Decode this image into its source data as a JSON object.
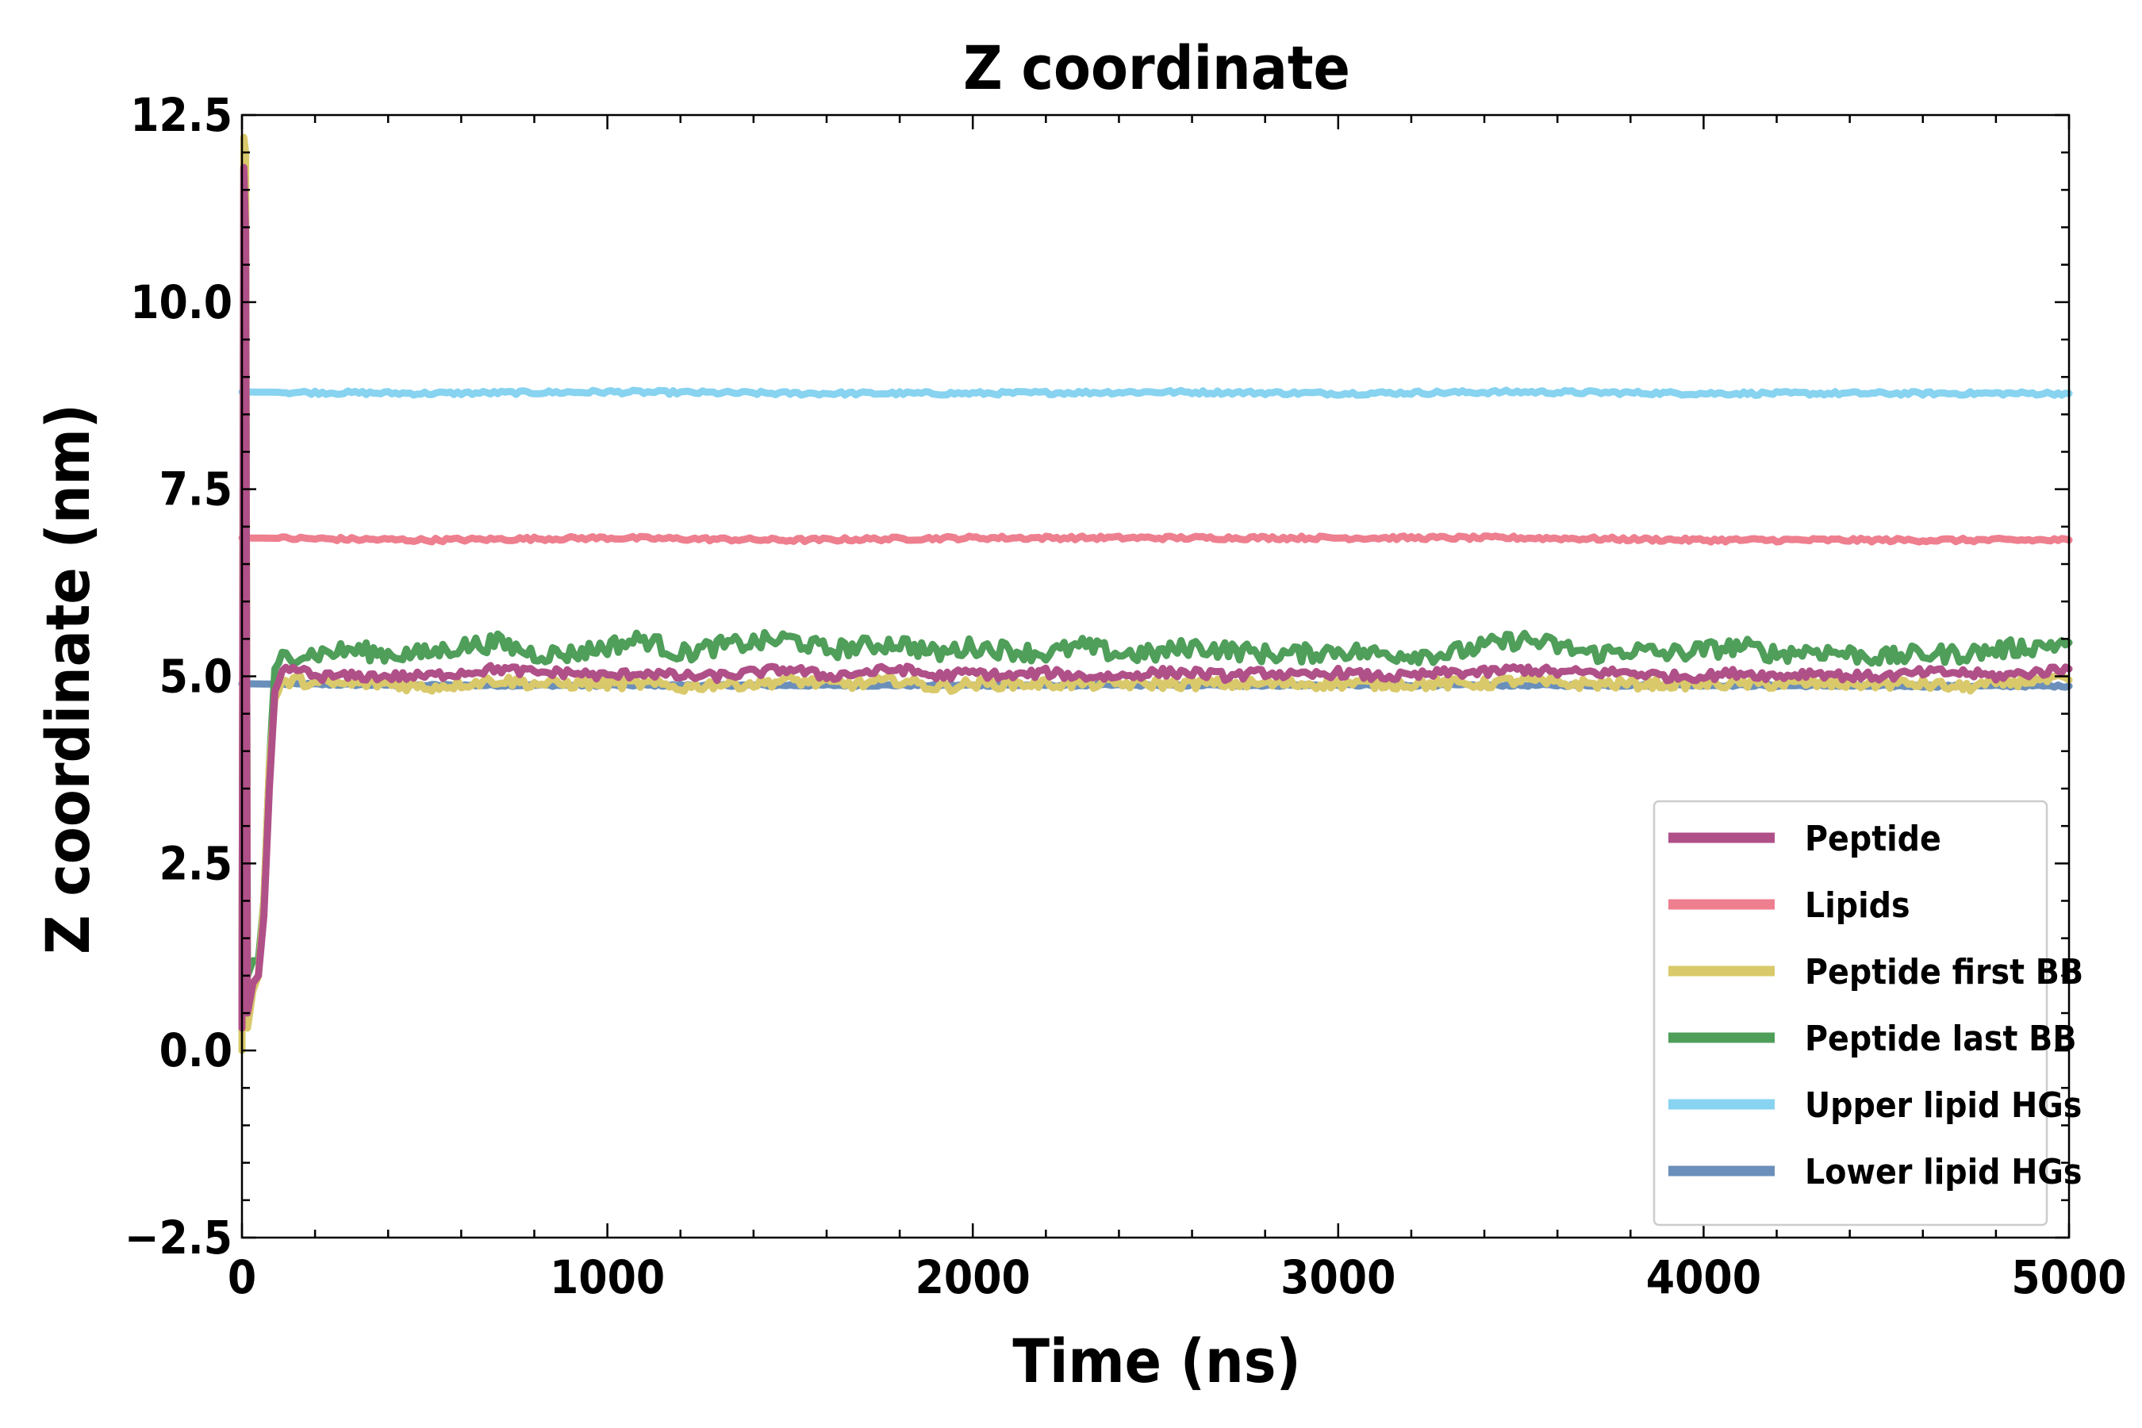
{
  "chart_data": {
    "type": "line",
    "title": "Z coordinate",
    "xlabel": "Time (ns)",
    "ylabel": "Z coordinate (nm)",
    "xlim": [
      0,
      5000
    ],
    "ylim": [
      -2.5,
      12.5
    ],
    "xticks": [
      0,
      1000,
      2000,
      3000,
      4000,
      5000
    ],
    "xtick_labels": [
      "0",
      "1000",
      "2000",
      "3000",
      "4000",
      "5000"
    ],
    "yticks": [
      -2.5,
      0.0,
      2.5,
      5.0,
      7.5,
      10.0,
      12.5
    ],
    "ytick_labels": [
      "−2.5",
      "0.0",
      "2.5",
      "5.0",
      "7.5",
      "10.0",
      "12.5"
    ],
    "grid": false,
    "legend_position": "lower-right",
    "series": [
      {
        "name": "Peptide",
        "color": "#b05088",
        "points": [
          [
            0,
            0.3
          ],
          [
            5,
            11.8
          ],
          [
            10,
            10.9
          ],
          [
            15,
            0.5
          ],
          [
            30,
            0.9
          ],
          [
            45,
            1.0
          ],
          [
            60,
            1.8
          ],
          [
            75,
            3.5
          ],
          [
            90,
            4.8
          ],
          [
            110,
            5.05
          ],
          [
            150,
            5.1
          ],
          [
            200,
            5.0
          ],
          [
            300,
            5.0
          ],
          [
            400,
            5.0
          ],
          [
            500,
            5.0
          ],
          [
            600,
            5.05
          ],
          [
            700,
            5.1
          ],
          [
            800,
            5.05
          ],
          [
            900,
            5.05
          ],
          [
            1000,
            5.0
          ],
          [
            1100,
            5.05
          ],
          [
            1200,
            5.0
          ],
          [
            1300,
            5.0
          ],
          [
            1400,
            5.05
          ],
          [
            1500,
            5.1
          ],
          [
            1600,
            5.0
          ],
          [
            1700,
            5.05
          ],
          [
            1800,
            5.1
          ],
          [
            1900,
            5.0
          ],
          [
            2000,
            5.05
          ],
          [
            2100,
            5.0
          ],
          [
            2200,
            5.05
          ],
          [
            2300,
            5.0
          ],
          [
            2400,
            5.0
          ],
          [
            2500,
            5.05
          ],
          [
            2600,
            5.05
          ],
          [
            2700,
            5.0
          ],
          [
            2800,
            5.05
          ],
          [
            2900,
            5.0
          ],
          [
            3000,
            5.05
          ],
          [
            3100,
            5.0
          ],
          [
            3200,
            5.0
          ],
          [
            3300,
            5.05
          ],
          [
            3400,
            5.05
          ],
          [
            3500,
            5.1
          ],
          [
            3600,
            5.05
          ],
          [
            3700,
            5.05
          ],
          [
            3800,
            5.05
          ],
          [
            3900,
            5.0
          ],
          [
            4000,
            5.0
          ],
          [
            4100,
            5.05
          ],
          [
            4200,
            5.0
          ],
          [
            4300,
            5.05
          ],
          [
            4400,
            5.0
          ],
          [
            4500,
            5.0
          ],
          [
            4600,
            5.05
          ],
          [
            4700,
            5.05
          ],
          [
            4800,
            5.0
          ],
          [
            4900,
            5.05
          ],
          [
            5000,
            5.1
          ]
        ]
      },
      {
        "name": "Lipids",
        "color": "#ee7f8f",
        "points": [
          [
            0,
            6.85
          ],
          [
            500,
            6.82
          ],
          [
            1000,
            6.85
          ],
          [
            1500,
            6.82
          ],
          [
            2000,
            6.85
          ],
          [
            2500,
            6.85
          ],
          [
            3000,
            6.85
          ],
          [
            3500,
            6.85
          ],
          [
            4000,
            6.82
          ],
          [
            4500,
            6.82
          ],
          [
            5000,
            6.82
          ]
        ]
      },
      {
        "name": "Peptide first BB",
        "color": "#d9c96a",
        "points": [
          [
            0,
            0.0
          ],
          [
            5,
            12.2
          ],
          [
            10,
            12.0
          ],
          [
            15,
            0.3
          ],
          [
            30,
            0.8
          ],
          [
            45,
            1.0
          ],
          [
            60,
            2.0
          ],
          [
            75,
            3.8
          ],
          [
            90,
            4.7
          ],
          [
            110,
            4.9
          ],
          [
            150,
            4.95
          ],
          [
            200,
            4.9
          ],
          [
            300,
            4.9
          ],
          [
            400,
            4.9
          ],
          [
            500,
            4.85
          ],
          [
            600,
            4.9
          ],
          [
            700,
            4.95
          ],
          [
            800,
            4.9
          ],
          [
            900,
            4.9
          ],
          [
            1000,
            4.9
          ],
          [
            1100,
            4.9
          ],
          [
            1200,
            4.85
          ],
          [
            1300,
            4.9
          ],
          [
            1400,
            4.9
          ],
          [
            1500,
            4.95
          ],
          [
            1600,
            4.9
          ],
          [
            1700,
            4.9
          ],
          [
            1800,
            4.95
          ],
          [
            1900,
            4.85
          ],
          [
            2000,
            4.9
          ],
          [
            2100,
            4.9
          ],
          [
            2200,
            4.9
          ],
          [
            2300,
            4.9
          ],
          [
            2400,
            4.9
          ],
          [
            2500,
            4.9
          ],
          [
            2600,
            4.9
          ],
          [
            2700,
            4.9
          ],
          [
            2800,
            4.9
          ],
          [
            2900,
            4.9
          ],
          [
            3000,
            4.9
          ],
          [
            3100,
            4.9
          ],
          [
            3200,
            4.9
          ],
          [
            3300,
            4.9
          ],
          [
            3400,
            4.9
          ],
          [
            3500,
            4.95
          ],
          [
            3600,
            4.9
          ],
          [
            3700,
            4.9
          ],
          [
            3800,
            4.9
          ],
          [
            3900,
            4.9
          ],
          [
            4000,
            4.9
          ],
          [
            4100,
            4.9
          ],
          [
            4200,
            4.9
          ],
          [
            4300,
            4.9
          ],
          [
            4400,
            4.9
          ],
          [
            4500,
            4.9
          ],
          [
            4600,
            4.9
          ],
          [
            4700,
            4.85
          ],
          [
            4800,
            4.9
          ],
          [
            4900,
            4.95
          ],
          [
            5000,
            4.95
          ]
        ]
      },
      {
        "name": "Peptide last BB",
        "color": "#4f9e5a",
        "points": [
          [
            0,
            0.8
          ],
          [
            5,
            10.2
          ],
          [
            10,
            10.6
          ],
          [
            15,
            1.0
          ],
          [
            30,
            1.2
          ],
          [
            45,
            1.2
          ],
          [
            60,
            2.0
          ],
          [
            75,
            3.8
          ],
          [
            90,
            5.1
          ],
          [
            110,
            5.25
          ],
          [
            150,
            5.3
          ],
          [
            200,
            5.3
          ],
          [
            300,
            5.35
          ],
          [
            400,
            5.3
          ],
          [
            500,
            5.3
          ],
          [
            600,
            5.4
          ],
          [
            700,
            5.45
          ],
          [
            800,
            5.3
          ],
          [
            900,
            5.3
          ],
          [
            1000,
            5.4
          ],
          [
            1100,
            5.5
          ],
          [
            1200,
            5.3
          ],
          [
            1300,
            5.4
          ],
          [
            1400,
            5.45
          ],
          [
            1500,
            5.5
          ],
          [
            1600,
            5.35
          ],
          [
            1700,
            5.4
          ],
          [
            1800,
            5.45
          ],
          [
            1900,
            5.3
          ],
          [
            2000,
            5.4
          ],
          [
            2100,
            5.35
          ],
          [
            2200,
            5.3
          ],
          [
            2300,
            5.4
          ],
          [
            2400,
            5.3
          ],
          [
            2500,
            5.3
          ],
          [
            2600,
            5.4
          ],
          [
            2700,
            5.35
          ],
          [
            2800,
            5.3
          ],
          [
            2900,
            5.3
          ],
          [
            3000,
            5.35
          ],
          [
            3100,
            5.3
          ],
          [
            3200,
            5.3
          ],
          [
            3300,
            5.3
          ],
          [
            3400,
            5.4
          ],
          [
            3500,
            5.5
          ],
          [
            3600,
            5.4
          ],
          [
            3700,
            5.3
          ],
          [
            3800,
            5.35
          ],
          [
            3900,
            5.3
          ],
          [
            4000,
            5.35
          ],
          [
            4100,
            5.4
          ],
          [
            4200,
            5.3
          ],
          [
            4300,
            5.35
          ],
          [
            4400,
            5.3
          ],
          [
            4500,
            5.25
          ],
          [
            4600,
            5.3
          ],
          [
            4700,
            5.3
          ],
          [
            4800,
            5.35
          ],
          [
            4900,
            5.4
          ],
          [
            5000,
            5.45
          ]
        ]
      },
      {
        "name": "Upper lipid HGs",
        "color": "#87d3f0",
        "points": [
          [
            0,
            8.8
          ],
          [
            500,
            8.78
          ],
          [
            1000,
            8.8
          ],
          [
            1500,
            8.78
          ],
          [
            2000,
            8.78
          ],
          [
            2500,
            8.8
          ],
          [
            3000,
            8.78
          ],
          [
            3500,
            8.8
          ],
          [
            4000,
            8.78
          ],
          [
            4500,
            8.78
          ],
          [
            5000,
            8.78
          ]
        ]
      },
      {
        "name": "Lower lipid HGs",
        "color": "#6a8fba",
        "points": [
          [
            0,
            4.9
          ],
          [
            500,
            4.88
          ],
          [
            1000,
            4.88
          ],
          [
            1500,
            4.88
          ],
          [
            2000,
            4.88
          ],
          [
            2500,
            4.88
          ],
          [
            3000,
            4.88
          ],
          [
            3500,
            4.88
          ],
          [
            4000,
            4.88
          ],
          [
            4500,
            4.87
          ],
          [
            5000,
            4.87
          ]
        ]
      }
    ]
  }
}
